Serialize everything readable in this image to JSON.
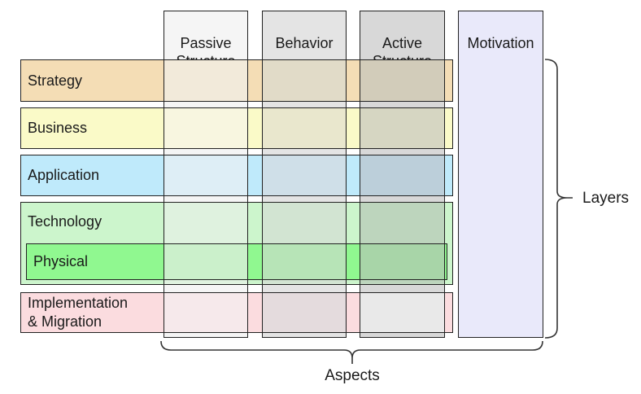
{
  "layers": [
    {
      "id": "strategy",
      "label": "Strategy",
      "color": "#F4DDB5"
    },
    {
      "id": "business",
      "label": "Business",
      "color": "#FAFAC8"
    },
    {
      "id": "application",
      "label": "Application",
      "color": "#BFEAFB"
    },
    {
      "id": "technology",
      "label": "Technology",
      "color": "#CCF5CC"
    },
    {
      "id": "physical",
      "label": "Physical",
      "color": "#90F890"
    },
    {
      "id": "implementation",
      "label": "Implementation\n& Migration",
      "color": "#FBDCDF"
    }
  ],
  "aspects": [
    {
      "id": "passive",
      "label": "Passive\nStructure",
      "header_color": "#F5F5F5",
      "cell_colors": {
        "strategy": "#F2EADA",
        "business": "#F8F6E0",
        "application": "#DEEEF6",
        "technology": "#DFF2DF",
        "physical": "#CBF0CB",
        "implementation": "#F6E9EB"
      }
    },
    {
      "id": "behavior",
      "label": "Behavior",
      "header_color": "#E4E4E4",
      "cell_colors": {
        "strategy": "#E1DBC8",
        "business": "#E9E7CD",
        "application": "#CFDFE8",
        "technology": "#D2E4D2",
        "physical": "#B7E4B7",
        "implementation": "#E4DBDD"
      }
    },
    {
      "id": "active",
      "label": "Active\nStructure",
      "header_color": "#D8D8D8",
      "cell_colors": {
        "strategy": "#D2CCBA",
        "business": "#D6D6C2",
        "application": "#BCCFDA",
        "technology": "#BDD5BD",
        "physical": "#A8D5A8",
        "implementation": "#E9E9E9"
      }
    },
    {
      "id": "motivation",
      "label": "Motivation",
      "header_color": "#E9E9FA",
      "cell_colors": {}
    }
  ],
  "annotations": {
    "layers_label": "Layers",
    "aspects_label": "Aspects"
  },
  "colors": {
    "border": "#222222",
    "brace": "#333333",
    "text": "#1a1a1a",
    "background": "#ffffff"
  }
}
